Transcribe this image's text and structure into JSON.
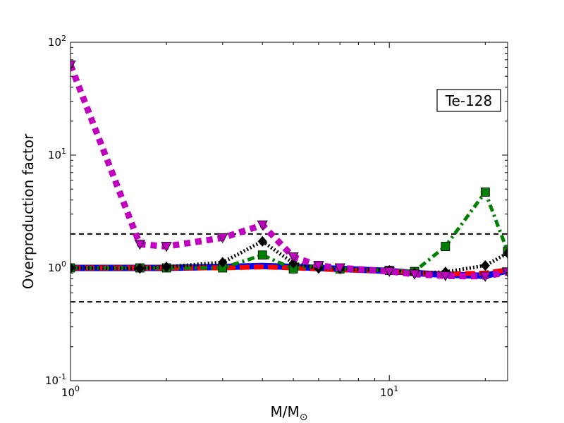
{
  "chart_data": {
    "type": "line",
    "xscale": "log",
    "yscale": "log",
    "xlim": [
      1,
      23.5
    ],
    "ylim": [
      0.1,
      100
    ],
    "xlabel_main": "M/M",
    "xlabel_sub": "⊙",
    "ylabel": "Overproduction factor",
    "annotation": "Te-128",
    "x_ticks": [
      {
        "value": 1,
        "base": "10",
        "exp": "0"
      },
      {
        "value": 10,
        "base": "10",
        "exp": "1"
      }
    ],
    "y_ticks": [
      {
        "value": 0.1,
        "base": "10",
        "exp": "-1"
      },
      {
        "value": 1,
        "base": "10",
        "exp": "0"
      },
      {
        "value": 10,
        "base": "10",
        "exp": "1"
      },
      {
        "value": 100,
        "base": "10",
        "exp": "2"
      }
    ],
    "reference_lines": [
      0.5,
      2.0
    ],
    "grid": false,
    "series": [
      {
        "color": "#0000ff",
        "dash": "solid",
        "width": 9,
        "marker": "none",
        "x": [
          1,
          1.65,
          2,
          3,
          4,
          5,
          6,
          7,
          10,
          12,
          15,
          20,
          23.5
        ],
        "y": [
          1.0,
          1.0,
          1.0,
          1.02,
          1.04,
          1.02,
          1.0,
          0.98,
          0.94,
          0.9,
          0.87,
          0.85,
          0.95
        ]
      },
      {
        "color": "#ff0000",
        "dash": "dashed",
        "width": 7,
        "marker": "none",
        "x": [
          1,
          1.65,
          2,
          3,
          4,
          5,
          6,
          7,
          10,
          12,
          15,
          20,
          23.5
        ],
        "y": [
          1.0,
          1.0,
          1.0,
          1.0,
          1.02,
          1.0,
          0.98,
          0.96,
          0.94,
          0.9,
          0.88,
          0.9,
          0.96
        ]
      },
      {
        "color": "#008000",
        "dash": "dashdot",
        "width": 5,
        "marker": "square",
        "x": [
          1,
          1.65,
          2,
          3,
          4,
          5,
          6,
          7,
          10,
          12,
          15,
          20,
          23.5
        ],
        "y": [
          1.0,
          1.0,
          1.0,
          1.0,
          1.3,
          0.98,
          1.05,
          0.98,
          0.95,
          0.93,
          1.55,
          4.7,
          1.4
        ]
      },
      {
        "color": "#000000",
        "dash": "dotted",
        "width": 5,
        "marker": "diamond",
        "x": [
          1,
          1.65,
          2,
          3,
          4,
          5,
          6,
          7,
          10,
          12,
          15,
          20,
          23.5
        ],
        "y": [
          1.0,
          0.99,
          1.02,
          1.12,
          1.72,
          1.1,
          0.99,
          0.98,
          0.95,
          0.9,
          0.92,
          1.05,
          1.35
        ]
      },
      {
        "color": "#bf00bf",
        "dash": "dotted-thick",
        "width": 9,
        "marker": "triangle-down",
        "x": [
          1,
          1.65,
          2,
          3,
          4,
          5,
          6,
          7,
          10,
          12,
          15,
          20,
          23.5
        ],
        "y": [
          63,
          1.62,
          1.55,
          1.85,
          2.4,
          1.25,
          1.05,
          1.0,
          0.93,
          0.88,
          0.85,
          0.84,
          0.92
        ]
      }
    ]
  }
}
